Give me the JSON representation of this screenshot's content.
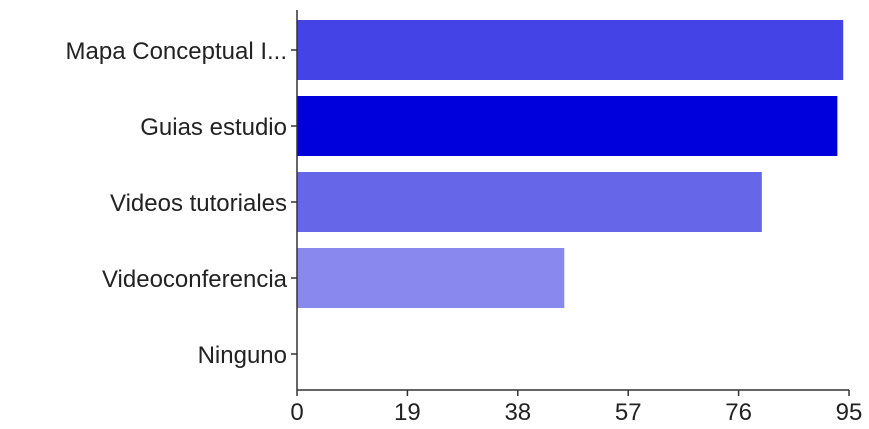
{
  "chart_data": {
    "type": "bar",
    "orientation": "horizontal",
    "categories": [
      "Mapa Conceptual I...",
      "Guias estudio",
      "Videos tutoriales",
      "Videoconferencia",
      "Ninguno"
    ],
    "values": [
      94,
      93,
      80,
      46,
      0
    ],
    "colors": [
      "#4444e6",
      "#0000dd",
      "#6666e8",
      "#8888ee",
      "#aaaaf2"
    ],
    "xticks": [
      "0",
      "19",
      "38",
      "57",
      "76",
      "95"
    ],
    "xlim": [
      0,
      95
    ],
    "grid": false,
    "legend": "none"
  }
}
